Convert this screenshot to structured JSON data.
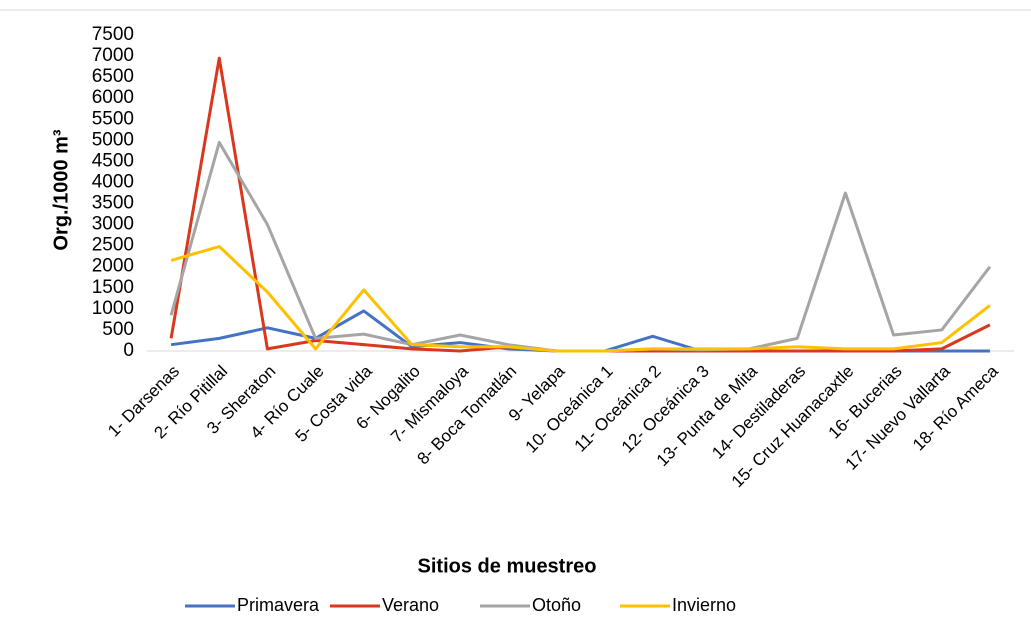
{
  "chart_data": {
    "type": "line",
    "ylabel": "Org./1000 m³",
    "xlabel": "Sitios de muestreo",
    "categories": [
      "1- Darsenas",
      "2- Río Pitillal",
      "3- Sheraton",
      "4- Río Cuale",
      "5- Costa vida",
      "6- Nogalito",
      "7- Mismaloya",
      "8- Boca Tomatlán",
      "9- Yelapa",
      "10- Oceánica 1",
      "11- Oceánica 2",
      "12- Oceánica 3",
      "13- Punta de Mita",
      "14- Destiladeras",
      "15- Cruz Huanacaxtle",
      "16- Bucerias",
      "17- Nuevo Vallarta",
      "18- Río Ameca"
    ],
    "series": [
      {
        "name": "Primavera",
        "color": "#4472c4",
        "values": [
          150,
          300,
          550,
          300,
          950,
          100,
          200,
          50,
          0,
          0,
          350,
          0,
          0,
          0,
          0,
          0,
          0,
          0
        ]
      },
      {
        "name": "Verano",
        "color": "#d9381e",
        "values": [
          300,
          6950,
          50,
          250,
          150,
          50,
          0,
          100,
          0,
          0,
          0,
          0,
          0,
          0,
          0,
          0,
          50,
          620
        ]
      },
      {
        "name": "Otoño",
        "color": "#a5a5a5",
        "values": [
          850,
          4950,
          3000,
          300,
          400,
          150,
          380,
          150,
          0,
          0,
          50,
          30,
          50,
          300,
          3750,
          380,
          500,
          2000
        ]
      },
      {
        "name": "Invierno",
        "color": "#ffc000",
        "values": [
          2150,
          2480,
          1400,
          50,
          1450,
          150,
          100,
          100,
          0,
          0,
          50,
          50,
          50,
          100,
          50,
          50,
          200,
          1080
        ]
      }
    ],
    "ylim": [
      0,
      7500
    ],
    "yticks": [
      0,
      500,
      1000,
      1500,
      2000,
      2500,
      3000,
      3500,
      4000,
      4500,
      5000,
      5500,
      6000,
      6500,
      7000,
      7500
    ],
    "grid": false,
    "legend": "bottom"
  }
}
